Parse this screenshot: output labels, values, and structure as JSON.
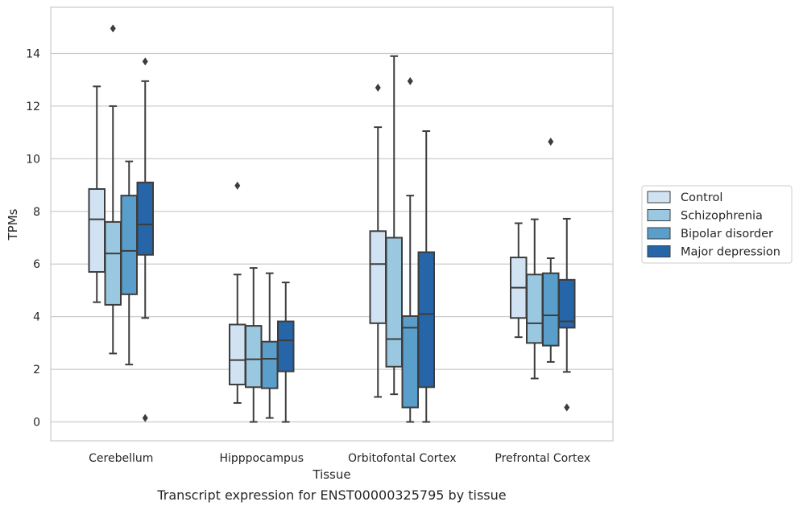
{
  "chart_data": {
    "type": "box",
    "caption": "Transcript expression for ENST00000325795 by tissue",
    "xlabel": "Tissue",
    "ylabel": "TPMs",
    "ylim": [
      -0.7,
      15.9
    ],
    "yticks": [
      0,
      2,
      4,
      6,
      8,
      10,
      12,
      14
    ],
    "ytick_labels": [
      "0",
      "2",
      "4",
      "6",
      "8",
      "10",
      "12",
      "14"
    ],
    "grid": "horizontal",
    "legend_position": "right",
    "categories": [
      "Cerebellum",
      "Hipppocampus",
      "Orbitofontal Cortex",
      "Prefrontal Cortex"
    ],
    "series": [
      {
        "name": "Control",
        "color": "#d1e3f3",
        "boxes": [
          {
            "whislo": 4.55,
            "q1": 5.7,
            "med": 7.7,
            "q3": 8.85,
            "whishi": 12.75,
            "fliers": []
          },
          {
            "whislo": 0.72,
            "q1": 1.42,
            "med": 2.35,
            "q3": 3.7,
            "whishi": 5.6,
            "fliers": [
              8.98
            ]
          },
          {
            "whislo": 0.95,
            "q1": 3.75,
            "med": 6.0,
            "q3": 7.25,
            "whishi": 11.2,
            "fliers": [
              12.7
            ]
          },
          {
            "whislo": 3.22,
            "q1": 3.95,
            "med": 5.1,
            "q3": 6.25,
            "whishi": 7.55,
            "fliers": []
          }
        ]
      },
      {
        "name": "Schizophrenia",
        "color": "#9ac8e0",
        "boxes": [
          {
            "whislo": 2.6,
            "q1": 4.45,
            "med": 6.4,
            "q3": 7.6,
            "whishi": 12.0,
            "fliers": [
              14.95
            ]
          },
          {
            "whislo": 0.0,
            "q1": 1.32,
            "med": 2.38,
            "q3": 3.65,
            "whishi": 5.85,
            "fliers": []
          },
          {
            "whislo": 1.05,
            "q1": 2.1,
            "med": 3.15,
            "q3": 7.0,
            "whishi": 13.9,
            "fliers": []
          },
          {
            "whislo": 1.65,
            "q1": 3.0,
            "med": 3.75,
            "q3": 5.6,
            "whishi": 7.7,
            "fliers": []
          }
        ]
      },
      {
        "name": "Bipolar disorder",
        "color": "#5a9fcc",
        "boxes": [
          {
            "whislo": 2.18,
            "q1": 4.85,
            "med": 6.5,
            "q3": 8.6,
            "whishi": 9.9,
            "fliers": []
          },
          {
            "whislo": 0.15,
            "q1": 1.28,
            "med": 2.4,
            "q3": 3.05,
            "whishi": 5.65,
            "fliers": []
          },
          {
            "whislo": 0.0,
            "q1": 0.55,
            "med": 3.58,
            "q3": 4.02,
            "whishi": 8.6,
            "fliers": [
              12.95
            ]
          },
          {
            "whislo": 2.28,
            "q1": 2.9,
            "med": 4.05,
            "q3": 5.65,
            "whishi": 6.22,
            "fliers": [
              10.65
            ]
          }
        ]
      },
      {
        "name": "Major depression",
        "color": "#2565a8",
        "boxes": [
          {
            "whislo": 3.95,
            "q1": 6.35,
            "med": 7.5,
            "q3": 9.1,
            "whishi": 12.95,
            "fliers": [
              13.7,
              0.15
            ]
          },
          {
            "whislo": 0.0,
            "q1": 1.92,
            "med": 3.1,
            "q3": 3.82,
            "whishi": 5.3,
            "fliers": []
          },
          {
            "whislo": 0.0,
            "q1": 1.32,
            "med": 4.1,
            "q3": 6.45,
            "whishi": 11.05,
            "fliers": []
          },
          {
            "whislo": 1.9,
            "q1": 3.58,
            "med": 3.82,
            "q3": 5.4,
            "whishi": 7.72,
            "fliers": [
              0.55
            ]
          }
        ]
      }
    ]
  }
}
